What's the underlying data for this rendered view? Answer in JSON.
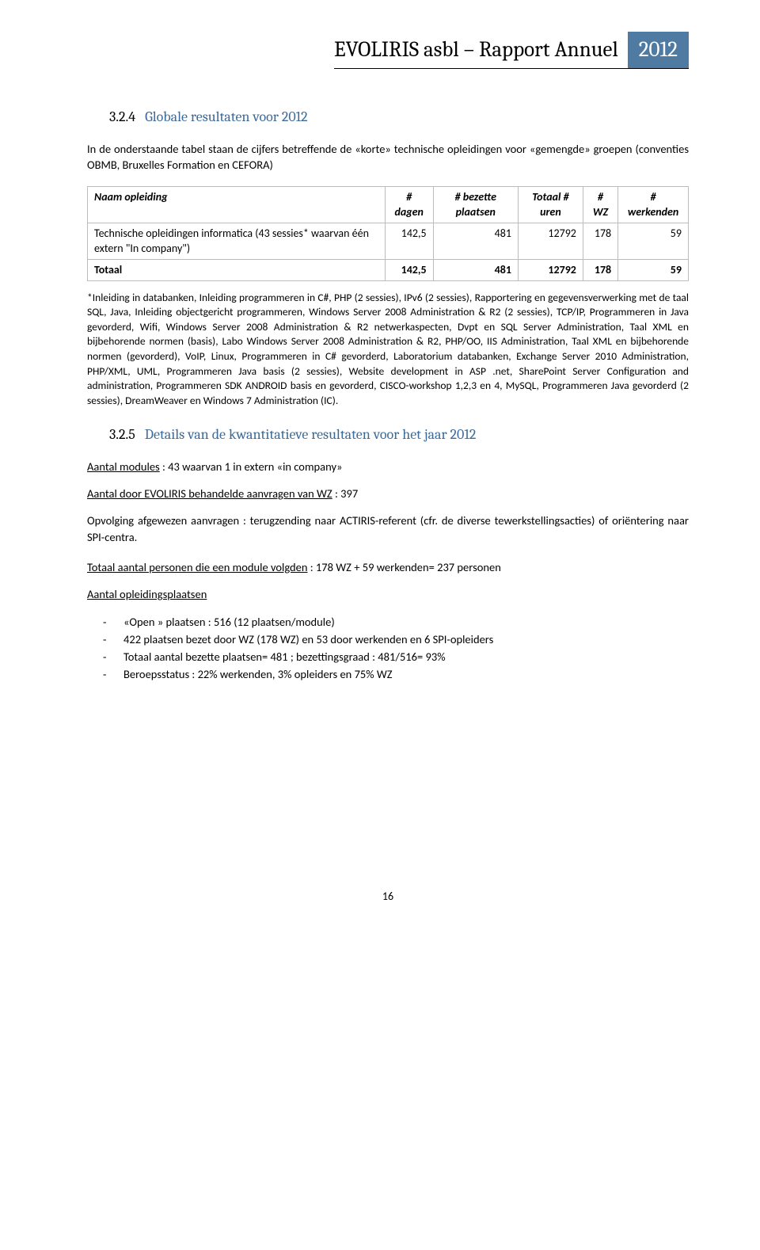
{
  "header": {
    "title": "EVOLIRIS asbl – Rapport Annuel",
    "year": "2012"
  },
  "section1": {
    "number": "3.2.4",
    "title": "Globale resultaten voor 2012",
    "intro": "In de onderstaande tabel staan de cijfers betreffende de «korte» technische opleidingen voor «gemengde» groepen (conventies OBMB, Bruxelles Formation en CEFORA)"
  },
  "table": {
    "columns": [
      "Naam opleiding",
      "# dagen",
      "# bezette plaatsen",
      "Totaal # uren",
      "# WZ",
      "# werkenden"
    ],
    "row1": {
      "name": "Technische opleidingen informatica (43 sessies* waarvan één extern \"In company\")",
      "dagen": "142,5",
      "plaatsen": "481",
      "uren": "12792",
      "wz": "178",
      "werk": "59"
    },
    "total": {
      "label": "Totaal",
      "dagen": "142,5",
      "plaatsen": "481",
      "uren": "12792",
      "wz": "178",
      "werk": "59"
    }
  },
  "footnote": "*Inleiding in databanken, Inleiding programmeren in C#, PHP (2 sessies), IPv6 (2 sessies), Rapportering en gegevensverwerking met de taal SQL, Java, Inleiding objectgericht programmeren, Windows Server 2008 Administration & R2 (2 sessies), TCP/IP, Programmeren in Java gevorderd, Wifi, Windows Server 2008 Administration & R2 netwerkaspecten, Dvpt en SQL Server Administration, Taal XML en bijbehorende normen (basis), Labo Windows Server 2008 Administration & R2, PHP/OO, IIS Administration, Taal XML en bijbehorende normen (gevorderd), VoIP, Linux, Programmeren in C# gevorderd, Laboratorium databanken, Exchange Server 2010 Administration, PHP/XML, UML, Programmeren Java basis (2 sessies), Website development in ASP .net, SharePoint Server Configuration and administration, Programmeren SDK ANDROID basis en gevorderd, CISCO-workshop 1,2,3 en 4, MySQL, Programmeren Java gevorderd (2 sessies), DreamWeaver en Windows 7 Administration (IC).",
  "section2": {
    "number": "3.2.5",
    "title": "Details van de kwantitatieve resultaten voor het jaar 2012"
  },
  "details": {
    "modules_label": "Aantal modules",
    "modules_text": " : 43 waarvan 1 in extern «in company»",
    "aanvragen_label": "Aantal door EVOLIRIS behandelde aanvragen van WZ",
    "aanvragen_text": " : 397",
    "opvolging": "Opvolging afgewezen aanvragen : terugzending naar ACTIRIS-referent (cfr. de diverse tewerkstellingsacties) of oriëntering naar SPI-centra.",
    "totaal_label": "Totaal aantal personen die een module volgden",
    "totaal_text": " : 178 WZ + 59 werkenden= 237 personen",
    "plaatsen_label": "Aantal opleidingsplaatsen",
    "list": [
      "«Open » plaatsen : 516 (12 plaatsen/module)",
      "422 plaatsen bezet door WZ (178 WZ) en 53 door werkenden en 6 SPI-opleiders",
      "Totaal aantal bezette plaatsen= 481 ; bezettingsgraad : 481/516= 93%",
      "Beroepsstatus : 22% werkenden, 3% opleiders en 75% WZ"
    ]
  },
  "page_number": "16"
}
